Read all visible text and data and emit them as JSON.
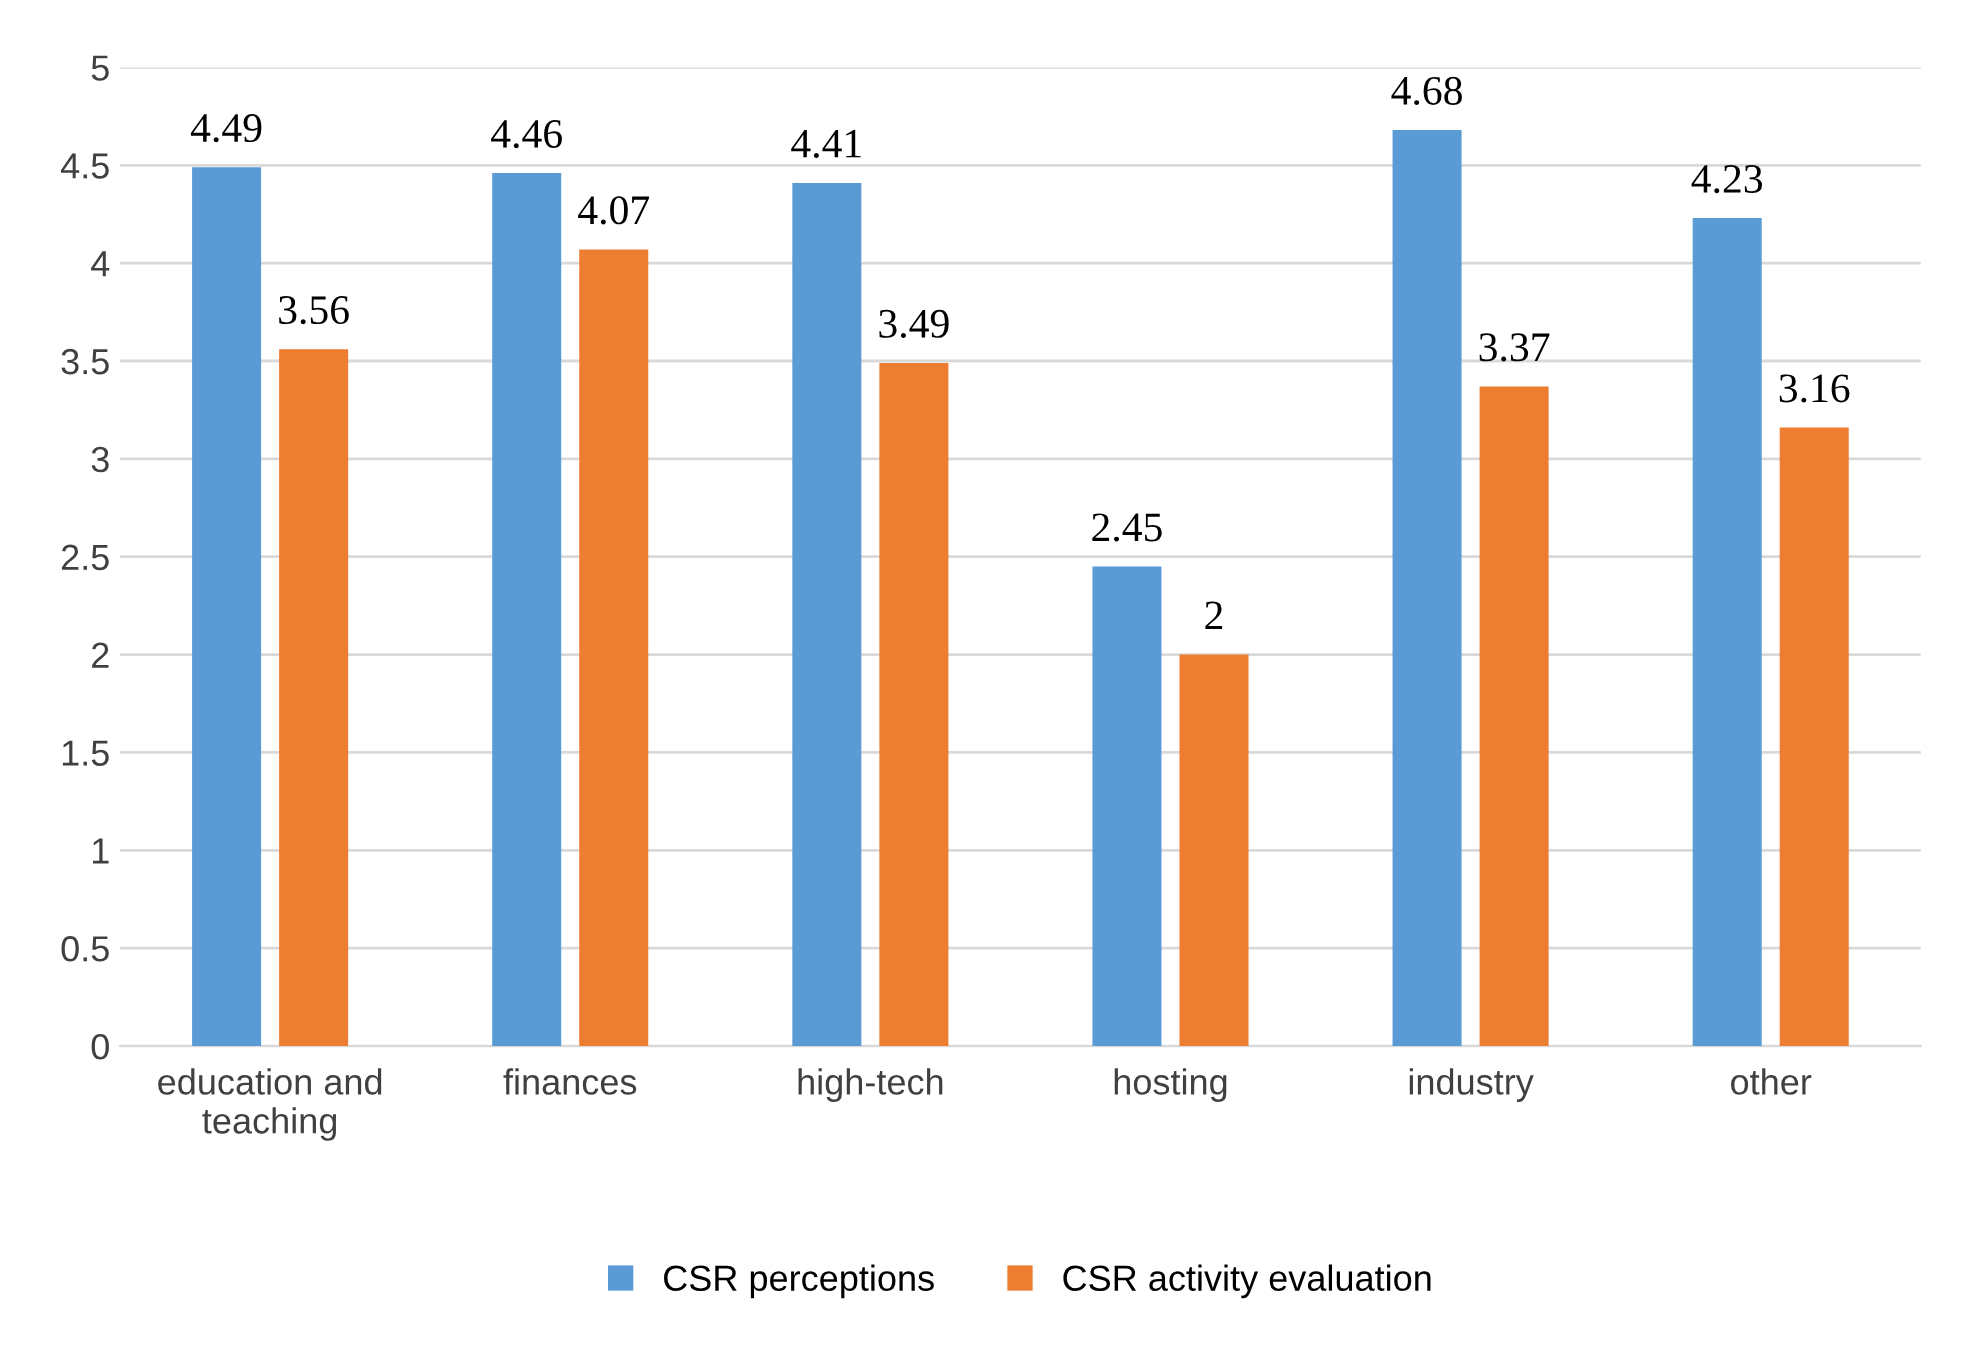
{
  "chart_data": {
    "type": "bar",
    "categories": [
      "education and\nteaching",
      "finances",
      "high-tech",
      "hosting",
      "industry",
      "other"
    ],
    "series": [
      {
        "name": "CSR perceptions",
        "color": "#5b9bd5",
        "values": [
          4.49,
          4.46,
          4.41,
          2.45,
          4.68,
          4.23
        ]
      },
      {
        "name": "CSR activity evaluation",
        "color": "#ed7d31",
        "values": [
          3.56,
          4.07,
          3.49,
          2,
          3.37,
          3.16
        ]
      }
    ],
    "ylim": [
      0,
      5
    ],
    "yticks": [
      0,
      0.5,
      1,
      1.5,
      2,
      2.5,
      3,
      3.5,
      4,
      4.5,
      5
    ],
    "grid": "y",
    "legend": "bottom",
    "data_labels": true
  }
}
